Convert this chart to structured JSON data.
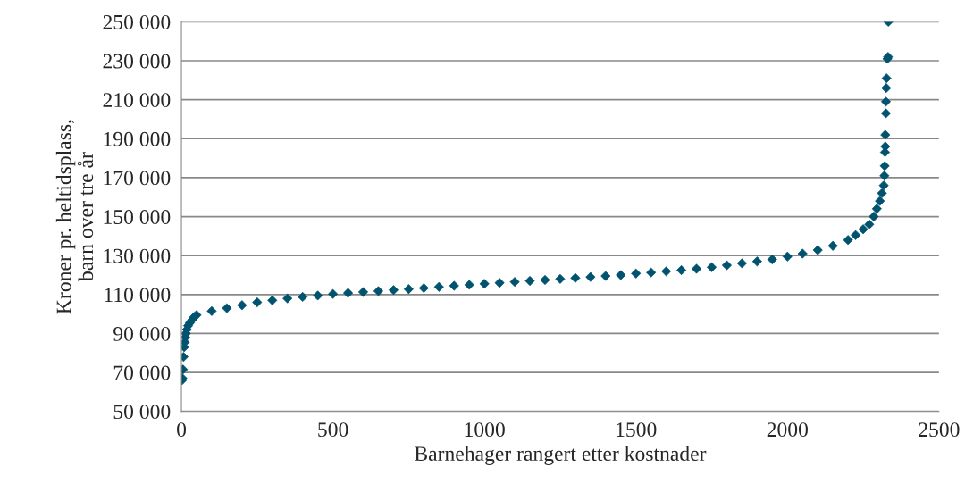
{
  "chart_data": {
    "type": "scatter",
    "xlabel": "Barnehager rangert etter kostnader",
    "ylabel": "Kroner pr. heltidsplass,\nbarn over tre år",
    "x": [
      2,
      3,
      5,
      7,
      9,
      11,
      13,
      15,
      18,
      22,
      28,
      35,
      42,
      50,
      100,
      150,
      200,
      250,
      300,
      350,
      400,
      450,
      500,
      550,
      600,
      650,
      700,
      750,
      800,
      850,
      900,
      950,
      1000,
      1050,
      1100,
      1150,
      1200,
      1250,
      1300,
      1350,
      1400,
      1450,
      1500,
      1550,
      1600,
      1650,
      1700,
      1750,
      1800,
      1850,
      1900,
      1950,
      2000,
      2050,
      2100,
      2150,
      2200,
      2225,
      2250,
      2270,
      2285,
      2295,
      2305,
      2312,
      2318,
      2320,
      2321,
      2322,
      2323,
      2323,
      2325,
      2325,
      2326,
      2327,
      2330,
      2332,
      2333
    ],
    "series": [
      {
        "color": "#00536e",
        "values": [
          66000,
          67000,
          71500,
          78000,
          83000,
          85500,
          88000,
          90000,
          92000,
          94000,
          95500,
          97000,
          98500,
          99500,
          101500,
          103000,
          104500,
          106000,
          107000,
          108000,
          108800,
          109500,
          110300,
          110800,
          111300,
          111800,
          112300,
          112800,
          113300,
          113900,
          114500,
          115000,
          115500,
          116000,
          116500,
          117000,
          117500,
          118000,
          118500,
          119000,
          119500,
          120000,
          120800,
          121300,
          121900,
          122500,
          123200,
          124000,
          125000,
          126000,
          127000,
          128000,
          129500,
          131000,
          132800,
          135000,
          138000,
          140500,
          143500,
          146000,
          150000,
          154000,
          158000,
          162000,
          166000,
          171000,
          176000,
          183000,
          186000,
          192000,
          203000,
          209000,
          216000,
          221000,
          231000,
          232000,
          250000
        ]
      }
    ],
    "marker": "diamond",
    "grid": "y",
    "legend": false,
    "xlim": [
      0,
      2500
    ],
    "xticks": [
      0,
      500,
      1000,
      1500,
      2000,
      2500
    ],
    "ylim": [
      50000,
      250000
    ],
    "yticks": [
      {
        "value": 50000,
        "label": "50 000"
      },
      {
        "value": 70000,
        "label": "70 000"
      },
      {
        "value": 90000,
        "label": "90 000"
      },
      {
        "value": 110000,
        "label": "110 000"
      },
      {
        "value": 130000,
        "label": "130 000"
      },
      {
        "value": 150000,
        "label": "150 000"
      },
      {
        "value": 170000,
        "label": "170 000"
      },
      {
        "value": 190000,
        "label": "190 000"
      },
      {
        "value": 210000,
        "label": "210 000"
      },
      {
        "value": 230000,
        "label": "230 000"
      },
      {
        "value": 250000,
        "label": "250 000"
      }
    ]
  }
}
